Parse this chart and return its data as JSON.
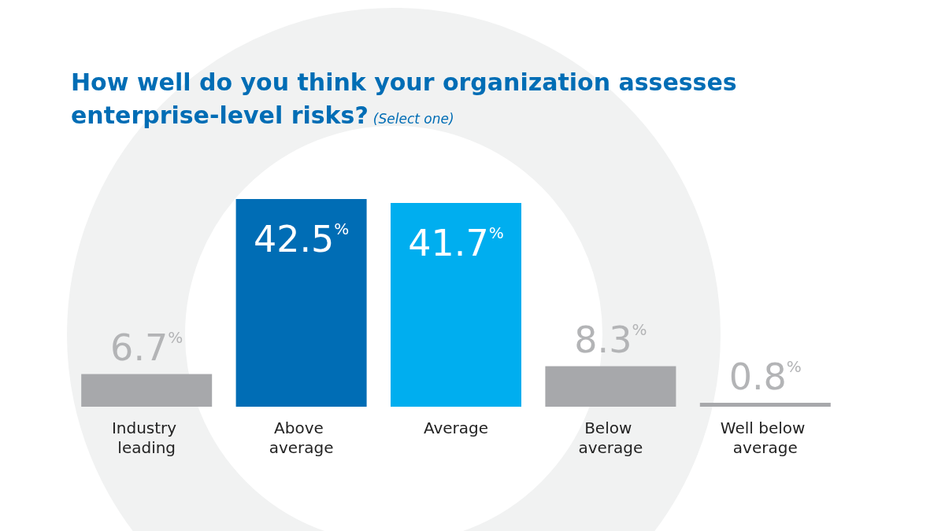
{
  "chart_data": {
    "type": "bar",
    "title": "How well do you think your organization assesses enterprise-level risks?",
    "subtitle": "(Select one)",
    "categories": [
      "Industry leading",
      "Above average",
      "Average",
      "Below average",
      "Well below average"
    ],
    "values": [
      6.7,
      42.5,
      41.7,
      8.3,
      0.8
    ],
    "colors": [
      "#a7a8ab",
      "#006db5",
      "#00aeef",
      "#a7a8ab",
      "#a7a8ab"
    ],
    "value_labels": [
      "6.7%",
      "42.5%",
      "41.7%",
      "8.3%",
      "0.8%"
    ],
    "data_labels": false
  }
}
